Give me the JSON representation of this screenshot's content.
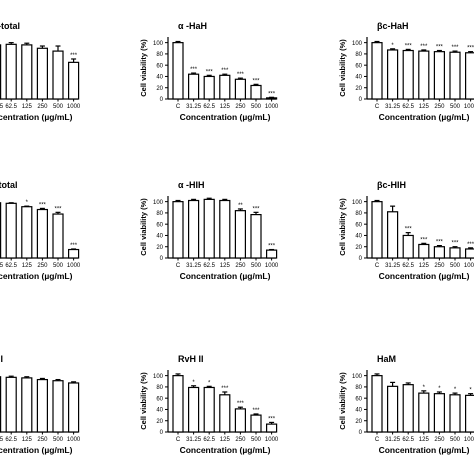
{
  "figure": {
    "ylabel": "Cell viability (%)",
    "xlabel": "Concentration (µg/mL)",
    "categories": [
      "C",
      "31.25",
      "62.5",
      "125",
      "250",
      "500",
      "1000"
    ],
    "yticks": [
      0,
      20,
      40,
      60,
      80,
      100
    ]
  },
  "chart_data": [
    {
      "type": "bar",
      "title": "HaH-total",
      "xlabel": "Concentration (µg/mL)",
      "ylabel": "",
      "ylim": [
        0,
        110
      ],
      "categories": [
        "C",
        "31.25",
        "62.5",
        "125",
        "250",
        "500",
        "1000"
      ],
      "values": [
        100,
        96,
        97,
        96,
        90,
        85,
        65
      ],
      "errors": [
        2,
        3,
        3,
        3,
        4,
        9,
        6
      ],
      "annotations": [
        "",
        "",
        "",
        "",
        "",
        "",
        "***"
      ]
    },
    {
      "type": "bar",
      "title": "α -HaH",
      "xlabel": "Concentration (µg/mL)",
      "ylabel": "Cell viability (%)",
      "ylim": [
        0,
        110
      ],
      "categories": [
        "C",
        "31.25",
        "62.5",
        "125",
        "250",
        "500",
        "1000"
      ],
      "values": [
        100,
        44,
        40,
        42,
        35,
        24,
        2
      ],
      "errors": [
        2,
        2,
        2,
        2,
        2,
        2,
        1
      ],
      "annotations": [
        "",
        "***",
        "***",
        "***",
        "***",
        "***",
        "***"
      ]
    },
    {
      "type": "bar",
      "title": "βc-HaH",
      "xlabel": "Concentration (µg/mL)",
      "ylabel": "Cell viability (%)",
      "ylim": [
        0,
        110
      ],
      "categories": [
        "C",
        "31.25",
        "62.5",
        "125",
        "250",
        "500",
        "1000"
      ],
      "values": [
        100,
        87,
        86,
        85,
        84,
        83,
        82
      ],
      "errors": [
        2,
        2,
        2,
        2,
        2,
        2,
        2
      ],
      "annotations": [
        "",
        "*",
        "***",
        "***",
        "***",
        "***",
        "***"
      ]
    },
    {
      "type": "bar",
      "title": "HIH-total",
      "xlabel": "Concentration (µg/mL)",
      "ylabel": "",
      "ylim": [
        0,
        110
      ],
      "categories": [
        "C",
        "31.25",
        "62.5",
        "125",
        "250",
        "500",
        "1000"
      ],
      "values": [
        100,
        98,
        97,
        91,
        86,
        78,
        15
      ],
      "errors": [
        1,
        1,
        1,
        1,
        2,
        3,
        1
      ],
      "annotations": [
        "",
        "",
        "",
        "*",
        "***",
        "***",
        "***"
      ]
    },
    {
      "type": "bar",
      "title": "α -HIH",
      "xlabel": "Concentration (µg/mL)",
      "ylabel": "Cell viability (%)",
      "ylim": [
        0,
        110
      ],
      "categories": [
        "C",
        "31.25",
        "62.5",
        "125",
        "250",
        "500",
        "1000"
      ],
      "values": [
        100,
        102,
        104,
        102,
        84,
        77,
        14
      ],
      "errors": [
        2,
        2,
        2,
        2,
        3,
        4,
        1
      ],
      "annotations": [
        "",
        "",
        "",
        "",
        "**",
        "***",
        "***"
      ]
    },
    {
      "type": "bar",
      "title": "βc-HIH",
      "xlabel": "Concentration (µg/mL)",
      "ylabel": "Cell viability (%)",
      "ylim": [
        0,
        110
      ],
      "categories": [
        "C",
        "31.25",
        "62.5",
        "125",
        "250",
        "500",
        "1000"
      ],
      "values": [
        100,
        82,
        40,
        24,
        20,
        18,
        16
      ],
      "errors": [
        2,
        10,
        5,
        2,
        2,
        2,
        2
      ],
      "annotations": [
        "",
        "",
        "***",
        "***",
        "***",
        "***",
        "***"
      ]
    },
    {
      "type": "bar",
      "title": "RvH I",
      "xlabel": "Concentration (µg/mL)",
      "ylabel": "",
      "ylim": [
        0,
        110
      ],
      "categories": [
        "C",
        "31.25",
        "62.5",
        "125",
        "250",
        "500",
        "1000"
      ],
      "values": [
        100,
        98,
        97,
        96,
        93,
        91,
        87
      ],
      "errors": [
        2,
        2,
        2,
        2,
        2,
        2,
        2
      ],
      "annotations": [
        "",
        "",
        "",
        "",
        "",
        "",
        ""
      ]
    },
    {
      "type": "bar",
      "title": "RvH II",
      "xlabel": "Concentration (µg/mL)",
      "ylabel": "Cell viability (%)",
      "ylim": [
        0,
        110
      ],
      "categories": [
        "C",
        "31.25",
        "62.5",
        "125",
        "250",
        "500",
        "1000"
      ],
      "values": [
        100,
        79,
        79,
        66,
        41,
        30,
        14
      ],
      "errors": [
        3,
        3,
        2,
        5,
        3,
        2,
        3
      ],
      "annotations": [
        "",
        "*",
        "*",
        "***",
        "***",
        "***",
        "***"
      ]
    },
    {
      "type": "bar",
      "title": "HaM",
      "xlabel": "Concentration (µg/mL)",
      "ylabel": "Cell viability (%)",
      "ylim": [
        0,
        110
      ],
      "categories": [
        "C",
        "31.25",
        "62.5",
        "125",
        "250",
        "500",
        "1000"
      ],
      "values": [
        100,
        81,
        84,
        69,
        68,
        66,
        65
      ],
      "errors": [
        3,
        7,
        3,
        4,
        3,
        3,
        3
      ],
      "annotations": [
        "",
        "",
        "",
        "*",
        "*",
        "*",
        "*"
      ]
    }
  ]
}
